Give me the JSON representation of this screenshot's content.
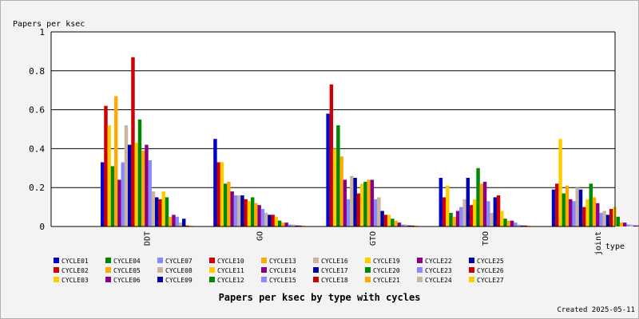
{
  "chart_data": {
    "type": "bar",
    "title": "Papers per ksec by type with cycles",
    "ylabel": "Papers per ksec",
    "xlabel": "type",
    "footer": "Created 2025-05-11",
    "ylim": [
      0,
      1
    ],
    "yticks": [
      "0",
      "0.2",
      "0.4",
      "0.6",
      "0.8",
      "1"
    ],
    "grid": true,
    "legend_position": "bottom",
    "categories": [
      "DDT",
      "GO",
      "GTO",
      "TOO",
      "joint"
    ],
    "series": [
      {
        "name": "CYCLE01",
        "color": "#0000cc",
        "values": [
          0.33,
          0.45,
          0.58,
          0.25,
          0.19
        ]
      },
      {
        "name": "CYCLE02",
        "color": "#cc0000",
        "values": [
          0.62,
          0.33,
          0.73,
          0.15,
          0.22
        ]
      },
      {
        "name": "CYCLE03",
        "color": "#ffcc00",
        "values": [
          0.52,
          0.33,
          0.4,
          0.21,
          0.45
        ]
      },
      {
        "name": "CYCLE04",
        "color": "#008800",
        "values": [
          0.31,
          0.22,
          0.52,
          0.07,
          0.17
        ]
      },
      {
        "name": "CYCLE05",
        "color": "#ffaa00",
        "values": [
          0.67,
          0.23,
          0.36,
          0.05,
          0.21
        ]
      },
      {
        "name": "CYCLE06",
        "color": "#880088",
        "values": [
          0.24,
          0.18,
          0.24,
          0.08,
          0.14
        ]
      },
      {
        "name": "CYCLE07",
        "color": "#8888ff",
        "values": [
          0.33,
          0.16,
          0.14,
          0.1,
          0.13
        ]
      },
      {
        "name": "CYCLE08",
        "color": "#c8b4a0",
        "values": [
          0.52,
          0.16,
          0.26,
          0.14,
          0.2
        ]
      },
      {
        "name": "CYCLE09",
        "color": "#0000aa",
        "values": [
          0.42,
          0.16,
          0.25,
          0.25,
          0.19
        ]
      },
      {
        "name": "CYCLE10",
        "color": "#cc0000",
        "values": [
          0.87,
          0.14,
          0.17,
          0.11,
          0.1
        ]
      },
      {
        "name": "CYCLE11",
        "color": "#ffcc00",
        "values": [
          0.43,
          0.13,
          0.22,
          0.14,
          0.14
        ]
      },
      {
        "name": "CYCLE12",
        "color": "#008800",
        "values": [
          0.55,
          0.15,
          0.23,
          0.3,
          0.22
        ]
      },
      {
        "name": "CYCLE13",
        "color": "#ffaa00",
        "values": [
          0.39,
          0.12,
          0.24,
          0.22,
          0.15
        ]
      },
      {
        "name": "CYCLE14",
        "color": "#880088",
        "values": [
          0.42,
          0.11,
          0.24,
          0.23,
          0.12
        ]
      },
      {
        "name": "CYCLE15",
        "color": "#8888ff",
        "values": [
          0.34,
          0.09,
          0.14,
          0.13,
          0.07
        ]
      },
      {
        "name": "CYCLE16",
        "color": "#c8b4a0",
        "values": [
          0.18,
          0.07,
          0.15,
          0.07,
          0.08
        ]
      },
      {
        "name": "CYCLE17",
        "color": "#0000aa",
        "values": [
          0.15,
          0.06,
          0.08,
          0.15,
          0.06
        ]
      },
      {
        "name": "CYCLE18",
        "color": "#cc0000",
        "values": [
          0.14,
          0.06,
          0.06,
          0.16,
          0.09
        ]
      },
      {
        "name": "CYCLE19",
        "color": "#ffcc00",
        "values": [
          0.18,
          0.05,
          0.06,
          0.08,
          0.1
        ]
      },
      {
        "name": "CYCLE20",
        "color": "#008800",
        "values": [
          0.15,
          0.03,
          0.04,
          0.04,
          0.05
        ]
      },
      {
        "name": "CYCLE21",
        "color": "#ffaa00",
        "values": [
          0.05,
          0.02,
          0.03,
          0.03,
          0.02
        ]
      },
      {
        "name": "CYCLE22",
        "color": "#880088",
        "values": [
          0.06,
          0.02,
          0.02,
          0.03,
          0.02
        ]
      },
      {
        "name": "CYCLE23",
        "color": "#8888ff",
        "values": [
          0.05,
          0.01,
          0.01,
          0.02,
          0.01
        ]
      },
      {
        "name": "CYCLE24",
        "color": "#c8b4a0",
        "values": [
          0.02,
          0.01,
          0.01,
          0.01,
          0.01
        ]
      },
      {
        "name": "CYCLE25",
        "color": "#0000aa",
        "values": [
          0.04,
          0.005,
          0.005,
          0.005,
          0.005
        ]
      },
      {
        "name": "CYCLE26",
        "color": "#cc0000",
        "values": [
          0.005,
          0.005,
          0.005,
          0.005,
          0.005
        ]
      },
      {
        "name": "CYCLE27",
        "color": "#ffcc00",
        "values": [
          0.005,
          0.005,
          0.005,
          0.005,
          0.005
        ]
      }
    ]
  }
}
